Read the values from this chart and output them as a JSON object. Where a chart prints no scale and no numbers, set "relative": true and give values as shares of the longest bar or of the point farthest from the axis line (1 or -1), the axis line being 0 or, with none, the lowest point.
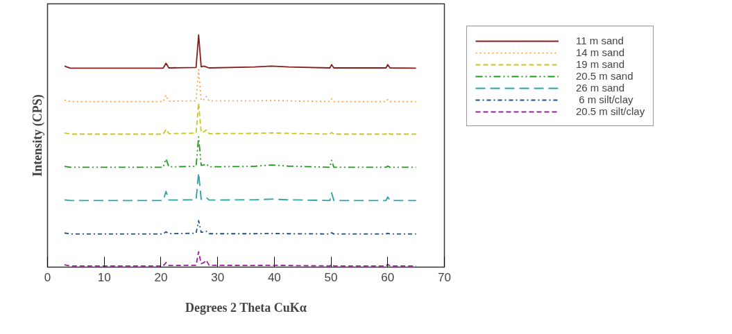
{
  "chart_data": {
    "type": "line",
    "relative": true,
    "xlabel": "Degrees 2 Theta CuKα",
    "ylabel": "Intensity (CPS)",
    "x": [
      3,
      4,
      20.4,
      20.9,
      21.4,
      26.2,
      26.65,
      27.1,
      27.6,
      28.0,
      28.5,
      36.5,
      39.5,
      42.5,
      49.8,
      50.1,
      50.5,
      59.7,
      60.0,
      60.4,
      65
    ],
    "xlim": [
      0,
      70
    ],
    "xticks": [
      0,
      10,
      20,
      30,
      40,
      50,
      60,
      70
    ],
    "grid": false,
    "legend": "right",
    "marker": "none",
    "series": [
      {
        "name": "11 m sand",
        "color": "#8b1a1a",
        "line_style": "solid",
        "values": [
          0.866,
          0.857,
          0.857,
          0.878,
          0.858,
          0.86,
          1.0,
          0.863,
          0.866,
          0.862,
          0.858,
          0.862,
          0.866,
          0.862,
          0.858,
          0.872,
          0.858,
          0.858,
          0.872,
          0.858,
          0.857
        ]
      },
      {
        "name": "14 m sand",
        "color": "#ff9933",
        "line_style": "dotted",
        "values": [
          0.72,
          0.713,
          0.713,
          0.74,
          0.715,
          0.716,
          0.851,
          0.718,
          0.722,
          0.735,
          0.716,
          0.716,
          0.718,
          0.716,
          0.713,
          0.725,
          0.713,
          0.713,
          0.722,
          0.713,
          0.713
        ]
      },
      {
        "name": "19 m sand",
        "color": "#c8c81e",
        "line_style": "dashed",
        "values": [
          0.578,
          0.573,
          0.573,
          0.594,
          0.575,
          0.577,
          0.707,
          0.58,
          0.583,
          0.591,
          0.575,
          0.576,
          0.578,
          0.576,
          0.573,
          0.58,
          0.573,
          0.573,
          0.58,
          0.573,
          0.573
        ]
      },
      {
        "name": "20.5 m sand",
        "color": "#1f9a1f",
        "line_style": "dashdotdot",
        "values": [
          0.434,
          0.43,
          0.43,
          0.466,
          0.432,
          0.434,
          0.561,
          0.438,
          0.44,
          0.445,
          0.432,
          0.434,
          0.44,
          0.435,
          0.43,
          0.46,
          0.43,
          0.43,
          0.435,
          0.43,
          0.43
        ]
      },
      {
        "name": "26 m sand",
        "color": "#2aa3a3",
        "line_style": "longdash",
        "values": [
          0.29,
          0.287,
          0.287,
          0.326,
          0.289,
          0.29,
          0.406,
          0.292,
          0.295,
          0.3,
          0.289,
          0.29,
          0.293,
          0.29,
          0.287,
          0.32,
          0.287,
          0.287,
          0.302,
          0.287,
          0.287
        ]
      },
      {
        "name": " 6 m silt/clay",
        "color": "#1f4e8c",
        "line_style": "dashdot",
        "values": [
          0.147,
          0.143,
          0.143,
          0.152,
          0.144,
          0.146,
          0.2,
          0.15,
          0.152,
          0.155,
          0.144,
          0.144,
          0.145,
          0.144,
          0.143,
          0.148,
          0.143,
          0.143,
          0.146,
          0.143,
          0.143
        ]
      },
      {
        "name": "20.5 m silt/clay",
        "color": "#9b1f9b",
        "line_style": "dashed",
        "values": [
          0.01,
          0.005,
          0.005,
          0.02,
          0.007,
          0.008,
          0.066,
          0.015,
          0.02,
          0.03,
          0.008,
          0.007,
          0.008,
          0.007,
          0.005,
          0.012,
          0.005,
          0.005,
          0.012,
          0.005,
          0.005
        ]
      }
    ]
  }
}
